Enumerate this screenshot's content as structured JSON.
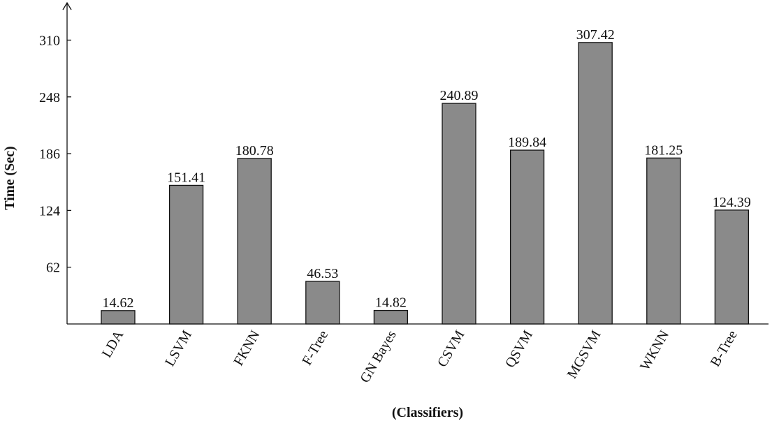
{
  "chart_data": {
    "type": "bar",
    "x_label": "(Classifiers)",
    "y_label": "Time (Sec)",
    "categories": [
      "LDA",
      "LSVM",
      "FKNN",
      "F-Tree",
      "GN Bayes",
      "CSVM",
      "QSVM",
      "MGSVM",
      "WKNN",
      "B-Tree"
    ],
    "values": [
      14.62,
      151.41,
      180.78,
      46.53,
      14.82,
      240.89,
      189.84,
      307.42,
      181.25,
      124.39
    ],
    "color": "#8a8a8a",
    "ylim": [
      0,
      350
    ],
    "yticks": [
      62,
      124,
      186,
      248,
      310
    ],
    "grid": false
  }
}
